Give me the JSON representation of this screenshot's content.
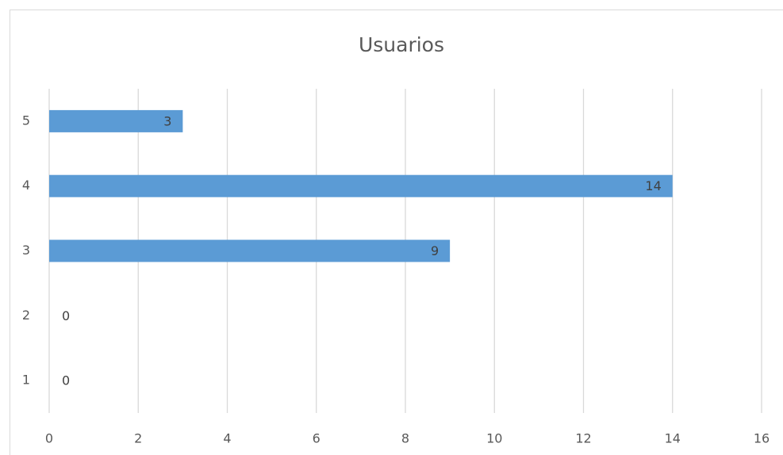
{
  "chart_data": {
    "type": "hbar",
    "title": "Usuarios",
    "categories": [
      "1",
      "2",
      "3",
      "4",
      "5"
    ],
    "values": [
      0,
      0,
      9,
      14,
      3
    ],
    "color": "#5b9bd5",
    "xlim": [
      0,
      16
    ],
    "xticks": [
      0,
      2,
      4,
      6,
      8,
      10,
      12,
      14,
      16
    ],
    "grid": true,
    "data_labels": true
  }
}
